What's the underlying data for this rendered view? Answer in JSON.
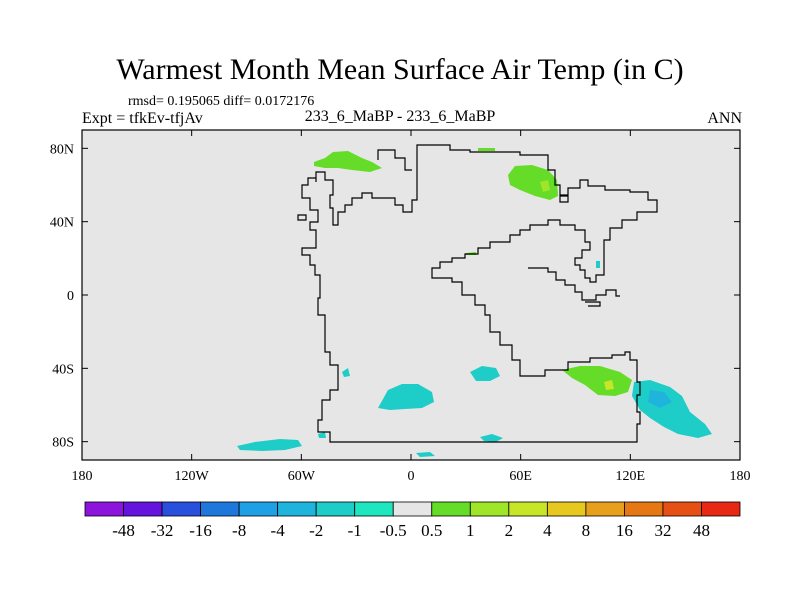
{
  "title": "Warmest Month Mean Surface Air Temp (in C)",
  "stats_line": "rmsd= 0.195065 diff= 0.0172176",
  "experiment": "Expt = tfkEv-tfjAv",
  "runs": "233_6_MaBP - 233_6_MaBP",
  "season": "ANN",
  "map": {
    "background_color": "#e6e6e6",
    "lon_range": [
      -180,
      180
    ],
    "lat_range": [
      -90,
      90
    ],
    "lon_ticks": [
      {
        "value": -180,
        "label": "180"
      },
      {
        "value": -120,
        "label": "120W"
      },
      {
        "value": -60,
        "label": "60W"
      },
      {
        "value": 0,
        "label": "0"
      },
      {
        "value": 60,
        "label": "60E"
      },
      {
        "value": 120,
        "label": "120E"
      },
      {
        "value": 180,
        "label": "180"
      }
    ],
    "lat_ticks": [
      {
        "value": 80,
        "label": "80N"
      },
      {
        "value": 40,
        "label": "40N"
      },
      {
        "value": 0,
        "label": "0"
      },
      {
        "value": -40,
        "label": "40S"
      },
      {
        "value": -80,
        "label": "80S"
      }
    ]
  },
  "colorbar": {
    "labels": [
      "-48",
      "-32",
      "-16",
      "-8",
      "-4",
      "-2",
      "-1",
      "-0.5",
      "0.5",
      "1",
      "2",
      "4",
      "8",
      "16",
      "32",
      "48"
    ],
    "colors": [
      "#8c14dc",
      "#6414dc",
      "#2850dc",
      "#1e78dc",
      "#1ea0e6",
      "#1eb4dc",
      "#1ecdc8",
      "#1ee6be",
      "#e6e6e6",
      "#64dc28",
      "#a0e628",
      "#c8e628",
      "#e6c81e",
      "#e6a01e",
      "#e67814",
      "#e65014",
      "#e62814"
    ]
  }
}
